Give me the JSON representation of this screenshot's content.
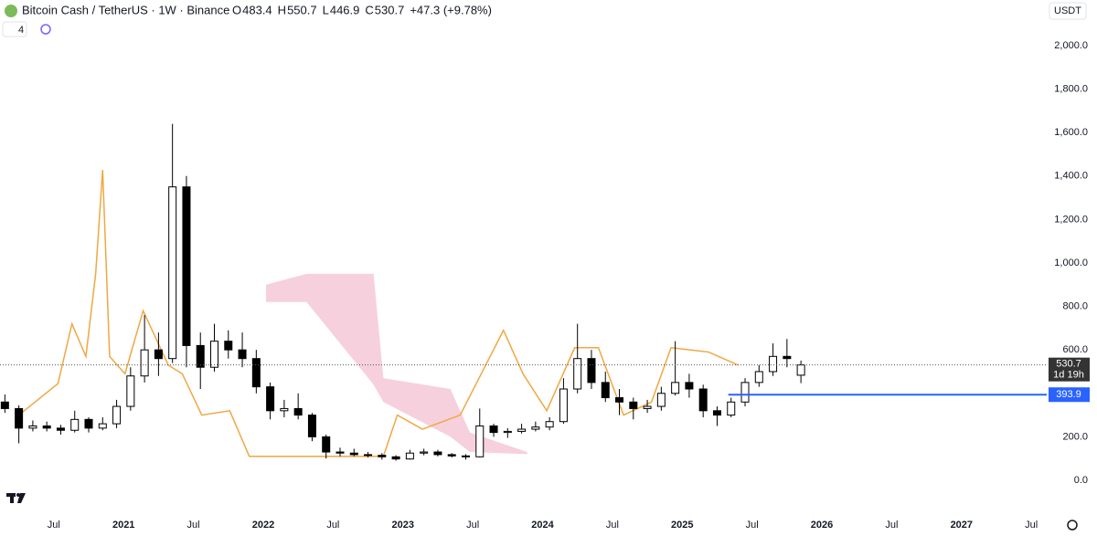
{
  "header": {
    "symbol": "Bitcoin Cash / TetherUS · 1W · Binance",
    "o_label": "O",
    "h_label": "H",
    "l_label": "L",
    "c_label": "C",
    "change": "+47.3 (+9.78%)",
    "indicator_count": "4",
    "currency": "USDT",
    "countdown": "1d 19h"
  },
  "chart_data": {
    "type": "candlestick",
    "color": "#000000",
    "x": [
      2020.15,
      2020.25,
      2020.35,
      2020.45,
      2020.55,
      2020.65,
      2020.75,
      2020.85,
      2020.95,
      2021.05,
      2021.15,
      2021.25,
      2021.35,
      2021.45,
      2021.55,
      2021.65,
      2021.75,
      2021.85,
      2021.95,
      2022.05,
      2022.15,
      2022.25,
      2022.35,
      2022.45,
      2022.55,
      2022.65,
      2022.75,
      2022.85,
      2022.95,
      2023.05,
      2023.15,
      2023.25,
      2023.35,
      2023.45,
      2023.55,
      2023.65,
      2023.75,
      2023.85,
      2023.95,
      2024.05,
      2024.15,
      2024.25,
      2024.35,
      2024.45,
      2024.55,
      2024.65,
      2024.75,
      2024.85,
      2024.95,
      2025.05,
      2025.15,
      2025.25,
      2025.35,
      2025.45,
      2025.55,
      2025.65,
      2025.75,
      2025.85
    ],
    "open": [
      360,
      330,
      240,
      250,
      240,
      230,
      280,
      240,
      260,
      340,
      480,
      600,
      560,
      1350,
      620,
      520,
      640,
      600,
      560,
      430,
      320,
      330,
      300,
      200,
      130,
      125,
      118,
      115,
      108,
      98,
      125,
      130,
      118,
      112,
      108,
      250,
      220,
      225,
      235,
      245,
      270,
      420,
      560,
      450,
      380,
      360,
      330,
      340,
      400,
      450,
      420,
      320,
      300,
      360,
      450,
      500,
      570,
      483.4
    ],
    "high": [
      395,
      345,
      275,
      270,
      255,
      320,
      290,
      290,
      370,
      520,
      760,
      680,
      1640,
      1400,
      680,
      720,
      690,
      680,
      600,
      450,
      370,
      400,
      310,
      210,
      150,
      145,
      130,
      125,
      115,
      140,
      145,
      140,
      125,
      120,
      330,
      260,
      240,
      260,
      270,
      290,
      470,
      720,
      600,
      500,
      420,
      380,
      370,
      430,
      640,
      490,
      440,
      340,
      380,
      470,
      530,
      630,
      650,
      550.7
    ],
    "low": [
      310,
      170,
      225,
      225,
      210,
      220,
      220,
      230,
      240,
      320,
      450,
      480,
      540,
      520,
      420,
      500,
      560,
      520,
      400,
      280,
      290,
      280,
      180,
      100,
      110,
      110,
      105,
      95,
      90,
      95,
      115,
      110,
      105,
      95,
      105,
      200,
      195,
      215,
      225,
      230,
      260,
      400,
      420,
      360,
      300,
      280,
      310,
      320,
      390,
      380,
      290,
      250,
      290,
      340,
      430,
      480,
      520,
      446.9
    ],
    "close": [
      330,
      240,
      250,
      240,
      230,
      280,
      240,
      260,
      340,
      480,
      600,
      560,
      1350,
      620,
      520,
      640,
      600,
      560,
      430,
      320,
      330,
      300,
      200,
      130,
      125,
      118,
      115,
      108,
      98,
      125,
      130,
      118,
      112,
      108,
      250,
      220,
      225,
      235,
      245,
      270,
      420,
      560,
      450,
      380,
      360,
      330,
      340,
      400,
      450,
      420,
      320,
      300,
      360,
      450,
      500,
      570,
      560,
      530.7
    ],
    "xlim": [
      2020.115,
      2027.97
    ],
    "xticks": [
      {
        "value": 2020.5,
        "label": "Jul"
      },
      2021,
      {
        "value": 2021.5,
        "label": "Jul"
      },
      2022,
      {
        "value": 2022.5,
        "label": "Jul"
      },
      2023,
      {
        "value": 2023.5,
        "label": "Jul"
      },
      2024,
      {
        "value": 2024.5,
        "label": "Jul"
      },
      2025,
      {
        "value": 2025.5,
        "label": "Jul"
      },
      2026,
      {
        "value": 2026.5,
        "label": "Jul"
      },
      2027,
      {
        "value": 2027.5,
        "label": "Jul"
      }
    ],
    "ylim": [
      -143,
      2210
    ],
    "yticks": [
      {
        "value": 0,
        "label": "0.0"
      },
      {
        "value": 200,
        "label": "200.0"
      },
      {
        "value": 400,
        "label": "400.0"
      },
      {
        "value": 600,
        "label": "600.0"
      },
      {
        "value": 800,
        "label": "800.0"
      },
      {
        "value": 1000,
        "label": "1,000.0"
      },
      {
        "value": 1200,
        "label": "1,200.0"
      },
      {
        "value": 1400,
        "label": "1,400.0"
      },
      {
        "value": 1600,
        "label": "1,600.0"
      },
      {
        "value": 1800,
        "label": "1,800.0"
      },
      {
        "value": 2000,
        "label": "2,000.0"
      }
    ],
    "indicator_line": {
      "color": "#f0a742",
      "x": [
        2020.25,
        2020.53,
        2020.63,
        2020.73,
        2020.8,
        2020.85,
        2020.9,
        2021.01,
        2021.14,
        2021.32,
        2021.42,
        2021.56,
        2021.76,
        2021.9,
        2022.17,
        2022.45,
        2022.86,
        2022.96,
        2023.14,
        2023.41,
        2023.72,
        2023.86,
        2024.03,
        2024.23,
        2024.4,
        2024.58,
        2024.78,
        2024.92,
        2025.19,
        2025.4
      ],
      "values": [
        300,
        445,
        720,
        570,
        950,
        1428,
        570,
        490,
        780,
        530,
        490,
        300,
        320,
        110,
        110,
        110,
        110,
        300,
        235,
        300,
        690,
        490,
        320,
        610,
        610,
        300,
        360,
        610,
        590,
        530
      ]
    },
    "cloud": {
      "color": "#f5c4d4",
      "x": [
        2022.02,
        2022.31,
        2022.79,
        2022.86,
        2023.34,
        2023.48,
        2023.89
      ],
      "upper": [
        900,
        950,
        950,
        470,
        420,
        220,
        130
      ],
      "lower": [
        820,
        820,
        440,
        360,
        200,
        130,
        120
      ]
    },
    "level": {
      "value": 393.9,
      "start": 2025.33,
      "color": "#2962ff"
    }
  }
}
